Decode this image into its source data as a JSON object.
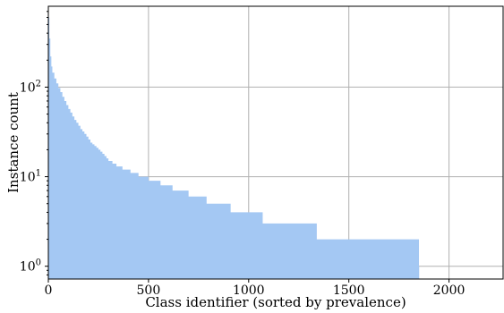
{
  "chart_data": {
    "type": "area",
    "xlabel": "Class identifier (sorted by prevalence)",
    "ylabel": "Instance count",
    "y_scale": "log",
    "xlim": [
      0,
      2270
    ],
    "ylim": [
      0.72,
      800
    ],
    "grid": true,
    "x_ticks": [
      {
        "value": 0,
        "label": "0"
      },
      {
        "value": 500,
        "label": "500"
      },
      {
        "value": 1000,
        "label": "1000"
      },
      {
        "value": 1500,
        "label": "1500"
      },
      {
        "value": 2000,
        "label": "2000"
      }
    ],
    "y_ticks": [
      {
        "value": 1,
        "base": "10",
        "exp": "0"
      },
      {
        "value": 10,
        "base": "10",
        "exp": "1"
      },
      {
        "value": 100,
        "base": "10",
        "exp": "2"
      }
    ],
    "fill_color": "#a4c8f3",
    "points": [
      [
        0,
        800
      ],
      [
        2,
        600
      ],
      [
        5,
        350
      ],
      [
        10,
        220
      ],
      [
        15,
        170
      ],
      [
        20,
        145
      ],
      [
        30,
        125
      ],
      [
        40,
        110
      ],
      [
        50,
        98
      ],
      [
        60,
        88
      ],
      [
        70,
        78
      ],
      [
        80,
        70
      ],
      [
        90,
        63
      ],
      [
        100,
        57
      ],
      [
        110,
        52
      ],
      [
        120,
        47
      ],
      [
        130,
        43
      ],
      [
        140,
        40
      ],
      [
        150,
        37
      ],
      [
        160,
        34
      ],
      [
        170,
        32
      ],
      [
        180,
        30
      ],
      [
        190,
        28
      ],
      [
        200,
        26
      ],
      [
        210,
        24
      ],
      [
        220,
        23
      ],
      [
        230,
        22
      ],
      [
        240,
        21
      ],
      [
        250,
        20
      ],
      [
        260,
        19
      ],
      [
        270,
        18
      ],
      [
        280,
        17
      ],
      [
        290,
        16
      ],
      [
        300,
        15
      ],
      [
        320,
        14
      ],
      [
        340,
        13
      ],
      [
        370,
        12
      ],
      [
        410,
        11
      ],
      [
        450,
        10
      ],
      [
        500,
        9
      ],
      [
        560,
        8
      ],
      [
        620,
        7
      ],
      [
        700,
        6
      ],
      [
        790,
        5
      ],
      [
        910,
        4
      ],
      [
        1070,
        3
      ],
      [
        1340,
        2
      ],
      [
        1850,
        1
      ]
    ]
  }
}
